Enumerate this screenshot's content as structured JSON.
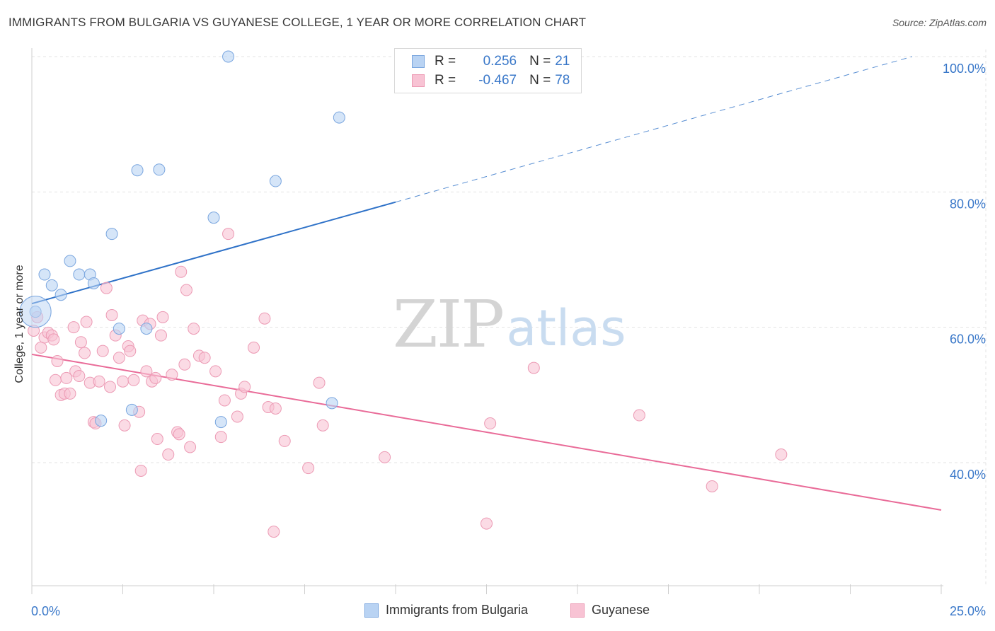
{
  "header": {
    "title": "IMMIGRANTS FROM BULGARIA VS GUYANESE COLLEGE, 1 YEAR OR MORE CORRELATION CHART",
    "source": "Source: ZipAtlas.com"
  },
  "watermark": {
    "zip": "ZIP",
    "atlas": "atlas"
  },
  "stats_legend": {
    "rows": [
      {
        "r_label": "R =",
        "r_value": "0.256",
        "n_label": "N =",
        "n_value": "21"
      },
      {
        "r_label": "R =",
        "r_value": "-0.467",
        "n_label": "N =",
        "n_value": "78"
      }
    ]
  },
  "colors": {
    "blue_fill": "#b9d3f3",
    "blue_stroke": "#7aa6df",
    "blue_line": "#2f72c8",
    "pink_fill": "#f8c3d4",
    "pink_stroke": "#ec9ab4",
    "pink_line": "#e96b98",
    "tick_label": "#3a78c9",
    "grid": "#e3e3e3"
  },
  "chart_data": {
    "type": "scatter",
    "title": "IMMIGRANTS FROM BULGARIA VS GUYANESE COLLEGE, 1 YEAR OR MORE CORRELATION CHART",
    "xlabel": "",
    "ylabel": "College, 1 year or more",
    "xlim": [
      0,
      25
    ],
    "ylim": [
      20,
      102
    ],
    "x_tick_labels": [
      "0.0%",
      "25.0%"
    ],
    "y_ticks": [
      40,
      60,
      80,
      100
    ],
    "y_tick_labels": [
      "40.0%",
      "60.0%",
      "80.0%",
      "100.0%"
    ],
    "grid": true,
    "legend_position": "bottom",
    "series": [
      {
        "name": "Immigrants from Bulgaria",
        "color": "#b9d3f3",
        "points": [
          [
            0.1,
            62.3
          ],
          [
            0.35,
            67.8
          ],
          [
            0.55,
            66.2
          ],
          [
            0.8,
            64.8
          ],
          [
            1.05,
            69.8
          ],
          [
            1.3,
            67.8
          ],
          [
            1.6,
            67.8
          ],
          [
            1.7,
            66.5
          ],
          [
            2.2,
            73.8
          ],
          [
            2.4,
            59.8
          ],
          [
            2.75,
            47.8
          ],
          [
            2.9,
            83.2
          ],
          [
            3.15,
            59.8
          ],
          [
            3.5,
            83.3
          ],
          [
            5.0,
            76.2
          ],
          [
            5.2,
            46.0
          ],
          [
            5.4,
            100.0
          ],
          [
            6.7,
            81.6
          ],
          [
            8.25,
            48.8
          ],
          [
            8.45,
            91.0
          ],
          [
            1.9,
            46.2
          ]
        ],
        "trend": {
          "x0": 0,
          "y0": 63.5,
          "x1": 10.0,
          "y1": 78.5,
          "dashed_to": {
            "x": 24.2,
            "y": 100.0
          }
        }
      },
      {
        "name": "Guyanese",
        "color": "#f8c3d4",
        "points": [
          [
            0.05,
            59.5
          ],
          [
            0.15,
            61.5
          ],
          [
            0.25,
            57.0
          ],
          [
            0.35,
            58.5
          ],
          [
            0.45,
            59.2
          ],
          [
            0.55,
            58.8
          ],
          [
            0.6,
            58.2
          ],
          [
            0.65,
            52.2
          ],
          [
            0.7,
            55.0
          ],
          [
            0.8,
            50.0
          ],
          [
            0.9,
            50.2
          ],
          [
            0.95,
            52.5
          ],
          [
            1.05,
            50.2
          ],
          [
            1.15,
            60.0
          ],
          [
            1.2,
            53.5
          ],
          [
            1.3,
            52.8
          ],
          [
            1.35,
            57.8
          ],
          [
            1.45,
            56.2
          ],
          [
            1.5,
            60.8
          ],
          [
            1.6,
            51.8
          ],
          [
            1.7,
            46.0
          ],
          [
            1.75,
            45.8
          ],
          [
            1.85,
            52.0
          ],
          [
            1.95,
            56.5
          ],
          [
            2.05,
            65.8
          ],
          [
            2.15,
            51.2
          ],
          [
            2.2,
            61.8
          ],
          [
            2.3,
            58.8
          ],
          [
            2.4,
            55.5
          ],
          [
            2.5,
            52.0
          ],
          [
            2.55,
            45.5
          ],
          [
            2.65,
            57.2
          ],
          [
            2.7,
            56.5
          ],
          [
            2.8,
            52.2
          ],
          [
            2.95,
            47.5
          ],
          [
            3.0,
            38.8
          ],
          [
            3.05,
            61.0
          ],
          [
            3.15,
            53.5
          ],
          [
            3.25,
            60.5
          ],
          [
            3.3,
            52.0
          ],
          [
            3.4,
            52.5
          ],
          [
            3.45,
            43.5
          ],
          [
            3.55,
            58.8
          ],
          [
            3.6,
            61.5
          ],
          [
            3.75,
            41.2
          ],
          [
            3.85,
            53.0
          ],
          [
            4.0,
            44.5
          ],
          [
            4.05,
            44.2
          ],
          [
            4.1,
            68.2
          ],
          [
            4.2,
            54.5
          ],
          [
            4.25,
            65.5
          ],
          [
            4.35,
            42.3
          ],
          [
            4.45,
            59.8
          ],
          [
            4.6,
            55.8
          ],
          [
            4.75,
            55.5
          ],
          [
            5.05,
            53.5
          ],
          [
            5.2,
            43.8
          ],
          [
            5.3,
            49.2
          ],
          [
            5.4,
            73.8
          ],
          [
            5.65,
            46.8
          ],
          [
            5.75,
            50.2
          ],
          [
            5.85,
            51.2
          ],
          [
            6.1,
            57.0
          ],
          [
            6.4,
            61.3
          ],
          [
            6.5,
            48.2
          ],
          [
            6.7,
            48.0
          ],
          [
            6.65,
            29.8
          ],
          [
            6.95,
            43.2
          ],
          [
            7.6,
            39.2
          ],
          [
            7.9,
            51.8
          ],
          [
            8.0,
            45.5
          ],
          [
            9.7,
            40.8
          ],
          [
            12.5,
            31.0
          ],
          [
            12.6,
            45.8
          ],
          [
            13.8,
            54.0
          ],
          [
            16.7,
            47.0
          ],
          [
            18.7,
            36.5
          ],
          [
            20.6,
            41.2
          ]
        ],
        "trend": {
          "x0": 0,
          "y0": 56.0,
          "x1": 25.0,
          "y1": 33.0
        }
      }
    ]
  }
}
